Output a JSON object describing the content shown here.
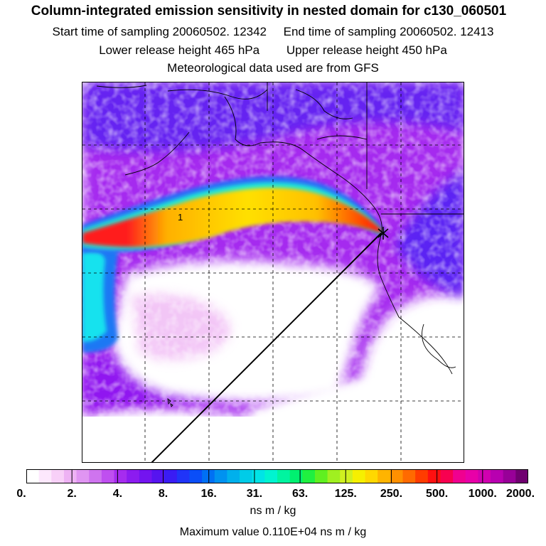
{
  "header": {
    "title": "Column-integrated emission sensitivity in nested domain for c130_060501",
    "start_label": "Start time of sampling 20060502. 12342",
    "end_label": "End time of sampling 20060502. 12413",
    "lower_label": "Lower release height  465 hPa",
    "upper_label": "Upper release height  450 hPa",
    "met_label": "Meteorological data used are from GFS"
  },
  "map": {
    "plume_label": "1",
    "colors": {
      "background_low": "#ffffff",
      "purple": "#9b1ff0",
      "blue": "#3c2cf5",
      "cyan": "#18e0f0",
      "yellow": "#ffd800",
      "orange": "#ff9800",
      "red": "#ff1e1e"
    }
  },
  "colorbar": {
    "segment_colors": [
      "#ffffff",
      "#fde8fd",
      "#f8d0f8",
      "#eeb2f4",
      "#e095f2",
      "#cf74ef",
      "#bf4ff0",
      "#a62cef",
      "#8c1cf0",
      "#7314f0",
      "#5614f0",
      "#3a1cf4",
      "#2034f8",
      "#0a4ef8",
      "#0070f4",
      "#0092f0",
      "#00b0ec",
      "#00cce8",
      "#00e4e6",
      "#00f4d0",
      "#00f4a0",
      "#00f070",
      "#20f040",
      "#60f020",
      "#a0f020",
      "#d0f020",
      "#f6f000",
      "#ffd800",
      "#ffb400",
      "#ff9000",
      "#ff6a00",
      "#ff3c00",
      "#ff1010",
      "#f80050",
      "#f00090",
      "#e800a8",
      "#d000b0",
      "#b800b0",
      "#980098",
      "#700070"
    ],
    "tick_labels": [
      "0.",
      "2.",
      "4.",
      "8.",
      "16.",
      "31.",
      "63.",
      "125.",
      "250.",
      "500.",
      "1000.",
      "2000."
    ],
    "unit": "ns m / kg",
    "max_label": "Maximum value  0.110E+04 ns m / kg"
  }
}
